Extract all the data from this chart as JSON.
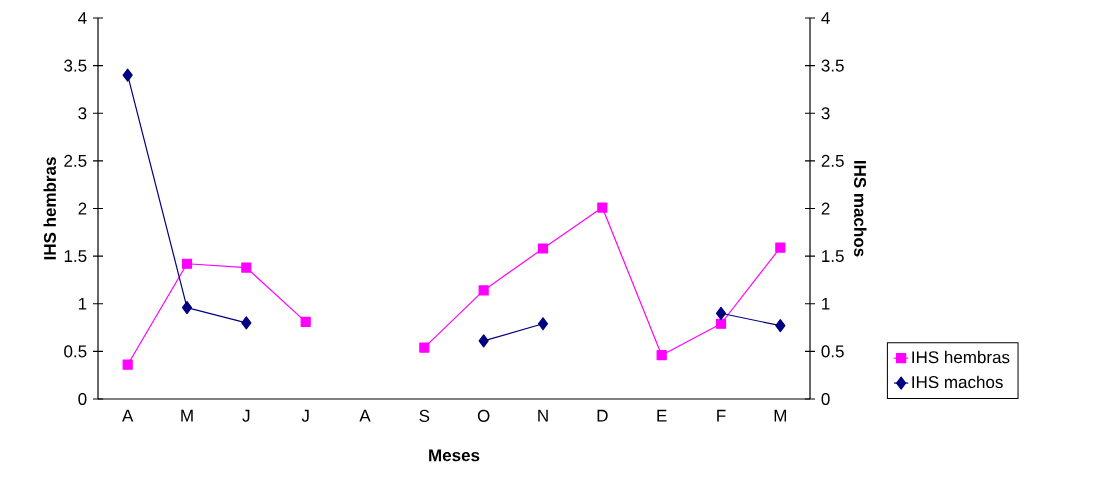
{
  "chart_data": {
    "type": "line",
    "xlabel": "Meses",
    "ylabel": "IHS hembras",
    "y2label": "IHS machos",
    "categories": [
      "A",
      "M",
      "J",
      "J",
      "A",
      "S",
      "O",
      "N",
      "D",
      "E",
      "F",
      "M"
    ],
    "series": [
      {
        "name": "IHS hembras",
        "color": "#ff00ff",
        "marker": "square",
        "values": [
          0.36,
          1.42,
          1.38,
          0.81,
          null,
          0.54,
          1.14,
          1.58,
          2.01,
          0.46,
          0.79,
          1.59
        ]
      },
      {
        "name": "IHS machos",
        "color": "#000080",
        "marker": "diamond",
        "axis": "y2",
        "values": [
          3.4,
          0.96,
          0.8,
          null,
          null,
          null,
          0.61,
          0.79,
          null,
          null,
          0.9,
          0.77
        ]
      }
    ],
    "ylim": [
      0,
      4
    ],
    "yticks": [
      0,
      0.5,
      1,
      1.5,
      2,
      2.5,
      3,
      3.5,
      4
    ],
    "y2lim": [
      0,
      4
    ],
    "y2ticks": [
      0,
      0.5,
      1,
      1.5,
      2,
      2.5,
      3,
      3.5,
      4
    ],
    "legend": "right",
    "grid": false,
    "line_style": "solid"
  }
}
